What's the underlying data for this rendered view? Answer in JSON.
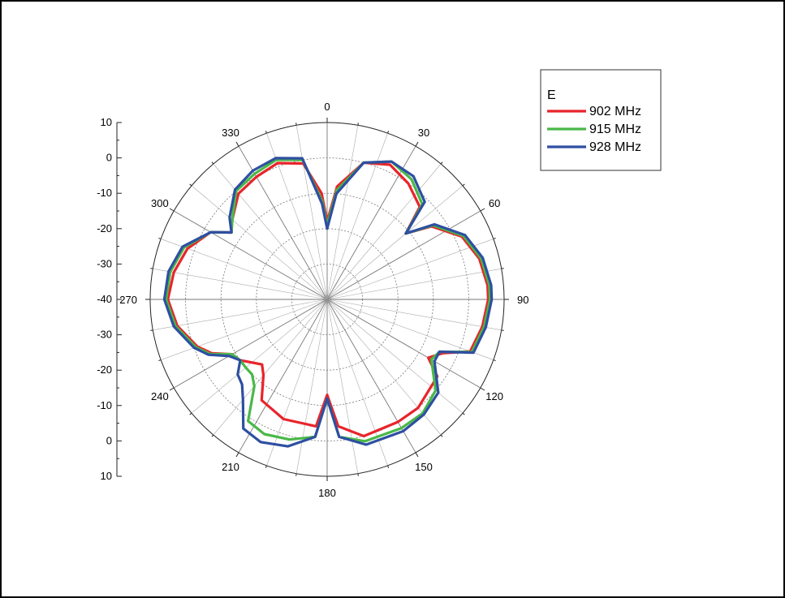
{
  "chart_data": {
    "type": "line",
    "projection": "polar",
    "title": "",
    "angular_axis": {
      "direction": "clockwise",
      "zero_at": "top",
      "tick_labels": [
        "0",
        "30",
        "60",
        "90",
        "120",
        "150",
        "180",
        "210",
        "240",
        "270",
        "300",
        "330"
      ],
      "minor_spoke_step_deg": 10
    },
    "radial_axis": {
      "range": [
        -40,
        10
      ],
      "tick_values": [
        -40,
        -30,
        -20,
        -10,
        0,
        10
      ],
      "tick_labels_top": [
        "10",
        "0",
        "-10",
        "-20",
        "-30",
        "-40"
      ],
      "tick_labels_bottom": [
        "-30",
        "-20",
        "-10",
        "0",
        "10"
      ],
      "grid": "dotted"
    },
    "legend": {
      "title": "E",
      "placement": "top-right",
      "entries": [
        "902 MHz",
        "915 MHz",
        "928 MHz"
      ]
    },
    "series": [
      {
        "name": "902 MHz",
        "color": "#e8242b",
        "points": [
          [
            0,
            -18
          ],
          [
            5,
            -8
          ],
          [
            15,
            0
          ],
          [
            25,
            2
          ],
          [
            35,
            0
          ],
          [
            45,
            -3
          ],
          [
            50,
            -11
          ],
          [
            55,
            -4
          ],
          [
            65,
            2
          ],
          [
            75,
            4.5
          ],
          [
            85,
            5.5
          ],
          [
            90,
            5.5
          ],
          [
            100,
            4.5
          ],
          [
            110,
            3
          ],
          [
            115,
            -4
          ],
          [
            120,
            -7
          ],
          [
            125,
            -2
          ],
          [
            140,
            0
          ],
          [
            150,
            0
          ],
          [
            165,
            0
          ],
          [
            175,
            -4
          ],
          [
            180,
            -13
          ],
          [
            185,
            -4
          ],
          [
            200,
            -4
          ],
          [
            213,
            -6
          ],
          [
            220,
            -12
          ],
          [
            225,
            -14
          ],
          [
            235,
            -10
          ],
          [
            240,
            -9
          ],
          [
            245,
            -4
          ],
          [
            250,
            -1
          ],
          [
            260,
            3
          ],
          [
            270,
            5
          ],
          [
            280,
            4
          ],
          [
            290,
            2
          ],
          [
            300,
            -2
          ],
          [
            305,
            -7
          ],
          [
            310,
            -5
          ],
          [
            320,
            -1
          ],
          [
            330,
            0
          ],
          [
            340,
            1
          ],
          [
            350,
            -1
          ],
          [
            357,
            -10
          ],
          [
            360,
            -18
          ]
        ]
      },
      {
        "name": "915 MHz",
        "color": "#49b848",
        "points": [
          [
            0,
            -19
          ],
          [
            5,
            -9
          ],
          [
            15,
            0
          ],
          [
            25,
            3
          ],
          [
            35,
            1.5
          ],
          [
            45,
            -2
          ],
          [
            50,
            -11
          ],
          [
            55,
            -3.5
          ],
          [
            65,
            2.5
          ],
          [
            75,
            5
          ],
          [
            85,
            6
          ],
          [
            90,
            6
          ],
          [
            100,
            5
          ],
          [
            110,
            3.5
          ],
          [
            115,
            -5
          ],
          [
            120,
            -6
          ],
          [
            130,
            0
          ],
          [
            140,
            2
          ],
          [
            150,
            2
          ],
          [
            165,
            1.5
          ],
          [
            175,
            -1
          ],
          [
            180,
            -12
          ],
          [
            185,
            -1
          ],
          [
            195,
            1
          ],
          [
            205,
            2
          ],
          [
            213,
            1
          ],
          [
            220,
            -8
          ],
          [
            225,
            -10
          ],
          [
            230,
            -10
          ],
          [
            235,
            -10
          ],
          [
            240,
            -9
          ],
          [
            245,
            -3.5
          ],
          [
            250,
            -0.5
          ],
          [
            260,
            3.5
          ],
          [
            270,
            5.5
          ],
          [
            280,
            5
          ],
          [
            290,
            3
          ],
          [
            300,
            -2
          ],
          [
            305,
            -7
          ],
          [
            310,
            -5
          ],
          [
            320,
            0
          ],
          [
            330,
            1
          ],
          [
            340,
            2
          ],
          [
            350,
            0
          ],
          [
            357,
            -12
          ],
          [
            360,
            -19
          ]
        ]
      },
      {
        "name": "928 MHz",
        "color": "#2e4fa1",
        "points": [
          [
            0,
            -20
          ],
          [
            5,
            -10
          ],
          [
            15,
            0
          ],
          [
            25,
            3
          ],
          [
            35,
            2.5
          ],
          [
            45,
            -1
          ],
          [
            50,
            -11
          ],
          [
            55,
            -3
          ],
          [
            65,
            3
          ],
          [
            75,
            5.5
          ],
          [
            85,
            6.5
          ],
          [
            90,
            6.5
          ],
          [
            100,
            5.5
          ],
          [
            110,
            4
          ],
          [
            115,
            -5
          ],
          [
            120,
            -5
          ],
          [
            130,
            1
          ],
          [
            140,
            2.5
          ],
          [
            150,
            3
          ],
          [
            165,
            2.5
          ],
          [
            175,
            -1
          ],
          [
            180,
            -12
          ],
          [
            185,
            -1
          ],
          [
            195,
            3
          ],
          [
            205,
            4.5
          ],
          [
            213,
            3.5
          ],
          [
            220,
            -3
          ],
          [
            225,
            -6
          ],
          [
            230,
            -7
          ],
          [
            235,
            -10
          ],
          [
            240,
            -8
          ],
          [
            245,
            -3
          ],
          [
            250,
            0
          ],
          [
            260,
            4
          ],
          [
            270,
            6
          ],
          [
            280,
            5.5
          ],
          [
            290,
            3.5
          ],
          [
            300,
            -2
          ],
          [
            305,
            -7
          ],
          [
            310,
            -4
          ],
          [
            320,
            0.5
          ],
          [
            330,
            2
          ],
          [
            340,
            2.5
          ],
          [
            350,
            0.5
          ],
          [
            357,
            -13
          ],
          [
            360,
            -20
          ]
        ]
      }
    ]
  }
}
